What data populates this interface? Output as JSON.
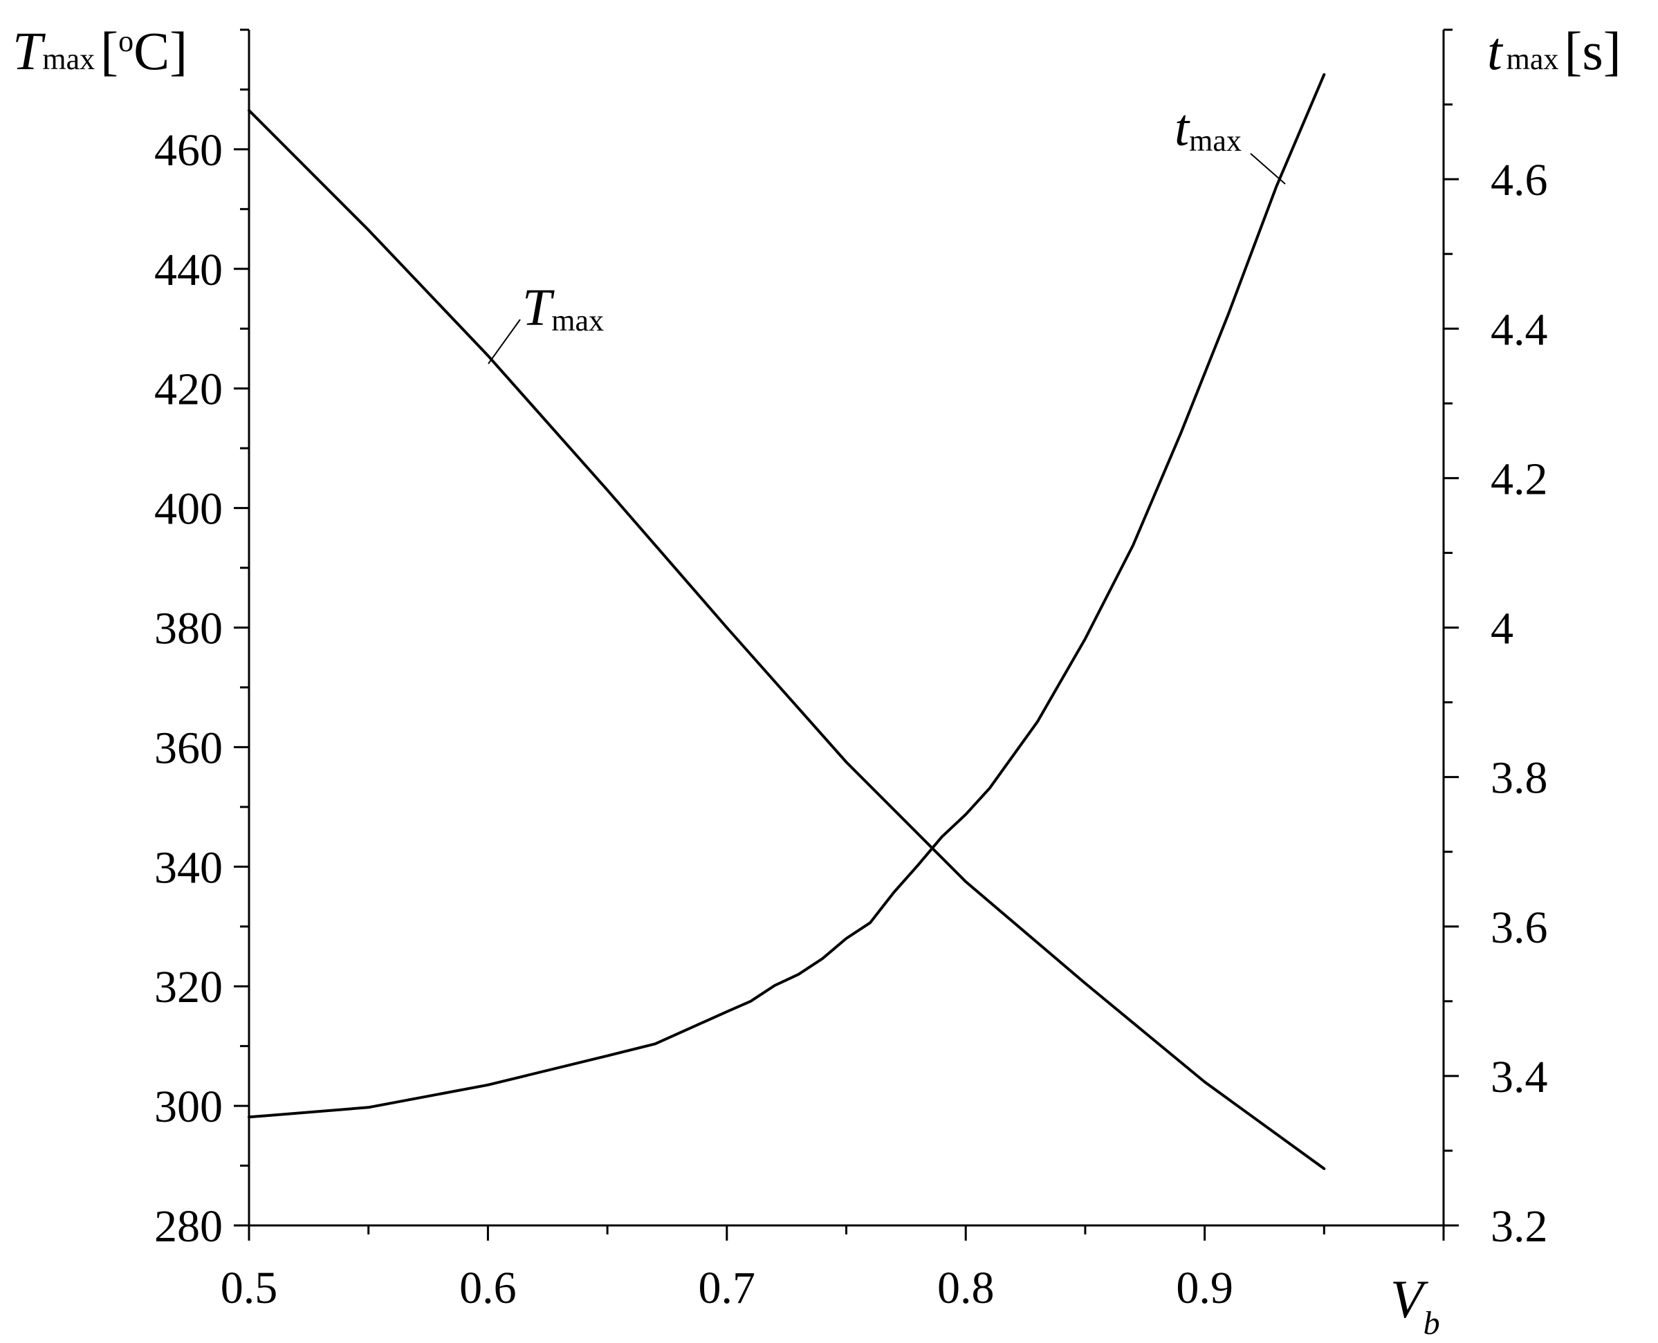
{
  "chart_data": {
    "type": "line",
    "x_axis": {
      "label_main": "V",
      "label_sub": "b",
      "range": [
        0.5,
        1.0
      ],
      "major_ticks": [
        0.5,
        0.6,
        0.7,
        0.8,
        0.9
      ],
      "tick_labels": [
        "0.5",
        "0.6",
        "0.7",
        "0.8",
        "0.9"
      ],
      "minor_step": 0.05
    },
    "y_left": {
      "label_main": "T",
      "label_sub": "max",
      "label_unit_open": "[",
      "label_unit_sup": "o",
      "label_unit_rest": "C]",
      "range": [
        280,
        480
      ],
      "major_ticks": [
        280,
        300,
        320,
        340,
        360,
        380,
        400,
        420,
        440,
        460
      ],
      "tick_labels": [
        "280",
        "300",
        "320",
        "340",
        "360",
        "380",
        "400",
        "420",
        "440",
        "460"
      ],
      "minor_step": 10
    },
    "y_right": {
      "label_main": "t",
      "label_sub": "max",
      "label_unit": "[s]",
      "range": [
        3.2,
        4.8
      ],
      "major_ticks": [
        3.2,
        3.4,
        3.6,
        3.8,
        4.0,
        4.2,
        4.4,
        4.6
      ],
      "tick_labels": [
        "3.2",
        "3.4",
        "3.6",
        "3.8",
        "4",
        "4.2",
        "4.4",
        "4.6"
      ],
      "minor_step": 0.1
    },
    "series": [
      {
        "name_main": "T",
        "name_sub": "max",
        "axis": "left",
        "x": [
          0.5,
          0.55,
          0.6,
          0.65,
          0.7,
          0.75,
          0.8,
          0.85,
          0.9,
          0.95
        ],
        "y": [
          466.5,
          446.5,
          425.5,
          403.0,
          380.0,
          357.5,
          337.5,
          320.5,
          304.0,
          289.5
        ]
      },
      {
        "name_main": "t",
        "name_sub": "max",
        "axis": "right",
        "x": [
          0.5,
          0.55,
          0.6,
          0.65,
          0.67,
          0.7,
          0.71,
          0.72,
          0.73,
          0.74,
          0.75,
          0.76,
          0.77,
          0.78,
          0.79,
          0.8,
          0.81,
          0.83,
          0.85,
          0.87,
          0.89,
          0.91,
          0.93,
          0.95
        ],
        "y": [
          3.345,
          3.358,
          3.388,
          3.427,
          3.443,
          3.486,
          3.5,
          3.521,
          3.536,
          3.557,
          3.584,
          3.605,
          3.646,
          3.682,
          3.72,
          3.75,
          3.785,
          3.874,
          3.985,
          4.11,
          4.26,
          4.42,
          4.59,
          4.74
        ]
      }
    ],
    "grid": false,
    "legend": "none (curves labeled inline)"
  }
}
